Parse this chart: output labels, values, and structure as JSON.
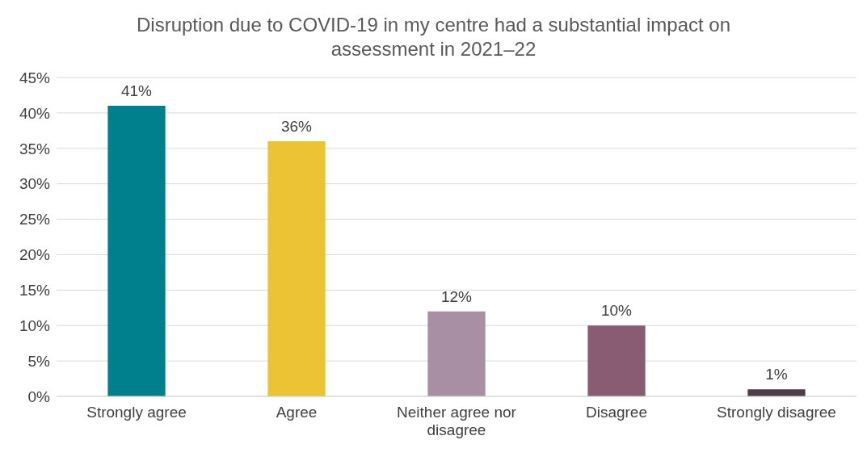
{
  "chart_data": {
    "type": "bar",
    "title": "Disruption due to COVID-19 in my centre had a substantial impact on assessment in 2021–22",
    "categories": [
      "Strongly agree",
      "Agree",
      "Neither agree nor disagree",
      "Disagree",
      "Strongly disagree"
    ],
    "values": [
      41,
      36,
      12,
      10,
      1
    ],
    "value_labels": [
      "41%",
      "36%",
      "12%",
      "10%",
      "1%"
    ],
    "colors": [
      "#007f8c",
      "#ebc334",
      "#a88fa3",
      "#8a5c74",
      "#4f3d4a"
    ],
    "ylim": [
      0,
      45
    ],
    "yticks": [
      {
        "value": 0,
        "label": "0%"
      },
      {
        "value": 5,
        "label": "5%"
      },
      {
        "value": 10,
        "label": "10%"
      },
      {
        "value": 15,
        "label": "15%"
      },
      {
        "value": 20,
        "label": "20%"
      },
      {
        "value": 25,
        "label": "25%"
      },
      {
        "value": 30,
        "label": "30%"
      },
      {
        "value": 35,
        "label": "35%"
      },
      {
        "value": 40,
        "label": "40%"
      },
      {
        "value": 45,
        "label": "45%"
      }
    ],
    "grid": "y"
  }
}
